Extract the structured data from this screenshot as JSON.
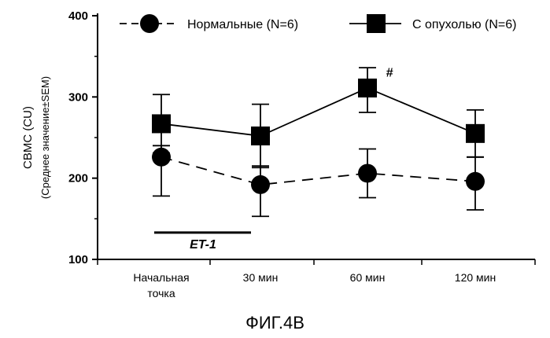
{
  "chart_data": {
    "type": "line",
    "categories": [
      "Начальная точка",
      "30 мин",
      "60 мин",
      "120 мин"
    ],
    "category_lines": [
      [
        "Начальная",
        "точка"
      ],
      [
        "30 мин"
      ],
      [
        "60 мин"
      ],
      [
        "120 мин"
      ]
    ],
    "ylim": [
      100,
      400
    ],
    "yticks": [
      100,
      200,
      300,
      400
    ],
    "ylabel": "CBMC (CU)",
    "ylabel_sub": "(Среднее значение±SEM)",
    "legend_position": "top",
    "series": [
      {
        "name": "Нормальные (N=6)",
        "marker": "circle",
        "line_style": "dashed",
        "values": [
          226,
          192,
          206,
          196
        ],
        "err_upper": [
          240,
          215,
          236,
          226
        ],
        "err_lower": [
          178,
          153,
          176,
          161
        ]
      },
      {
        "name": "С опухолью (N=6)",
        "marker": "square",
        "line_style": "solid",
        "values": [
          267,
          252,
          311,
          255
        ],
        "err_upper": [
          303,
          291,
          336,
          284
        ],
        "err_lower": [
          231,
          213,
          281,
          226
        ]
      }
    ],
    "annotations": [
      {
        "text": "#",
        "category": 2,
        "y": 320
      },
      {
        "text": "ET-1",
        "type": "bar",
        "from_category": 0,
        "to_category": 1,
        "y": 133
      }
    ],
    "grid": false
  },
  "figure_caption": "ФИГ.4B"
}
